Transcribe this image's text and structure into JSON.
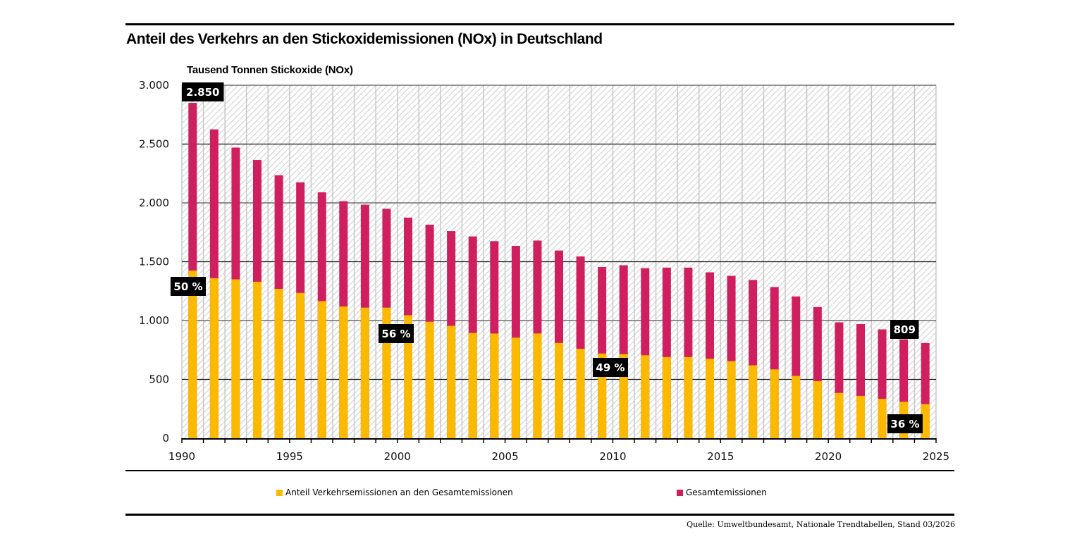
{
  "header": {
    "title": "Anteil des Verkehrs an den Stickoxidemissionen (NOx) in Deutschland"
  },
  "legend": {
    "traffic_label": "Anteil Verkehrsemissionen an den Gesamtemissionen",
    "total_label": "Gesamtemissionen"
  },
  "footer": {
    "source": "Quelle: Umweltbundesamt, Nationale Trendtabellen, Stand 03/2026"
  },
  "chart_data": {
    "type": "bar",
    "stacking": "overlay",
    "title": "Anteil des Verkehrs an den Stickoxidemissionen (NOx) in Deutschland",
    "ylabel": "Tausend Tonnen Stickoxide (NOx)",
    "xlabel": "",
    "ylim": [
      0,
      3000
    ],
    "yticks": [
      0,
      500,
      1000,
      1500,
      2000,
      2500,
      3000
    ],
    "ytick_labels": [
      "0",
      "500",
      "1.000",
      "1.500",
      "2.000",
      "2.500",
      "3.000"
    ],
    "xlim": [
      1990,
      2025
    ],
    "xticks": [
      1990,
      1995,
      2000,
      2005,
      2010,
      2015,
      2020,
      2025
    ],
    "xtick_labels": [
      "1990",
      "1995",
      "2000",
      "2005",
      "2010",
      "2015",
      "2020",
      "2025"
    ],
    "grid": true,
    "legend_position": "bottom",
    "categories": [
      1990,
      1991,
      1992,
      1993,
      1994,
      1995,
      1996,
      1997,
      1998,
      1999,
      2000,
      2001,
      2002,
      2003,
      2004,
      2005,
      2006,
      2007,
      2008,
      2009,
      2010,
      2011,
      2012,
      2013,
      2014,
      2015,
      2016,
      2017,
      2018,
      2019,
      2020,
      2021,
      2022,
      2023,
      2024
    ],
    "series": [
      {
        "name": "Gesamtemissionen",
        "color": "#cf1f5e",
        "values": [
          2850,
          2625,
          2470,
          2365,
          2235,
          2175,
          2090,
          2015,
          1985,
          1950,
          1875,
          1815,
          1760,
          1715,
          1675,
          1635,
          1680,
          1595,
          1545,
          1455,
          1470,
          1445,
          1450,
          1450,
          1410,
          1380,
          1345,
          1285,
          1205,
          1115,
          985,
          970,
          925,
          840,
          809
        ]
      },
      {
        "name": "Anteil Verkehrsemissionen an den Gesamtemissionen",
        "color": "#fbb900",
        "values": [
          1425,
          1360,
          1350,
          1330,
          1270,
          1235,
          1165,
          1120,
          1110,
          1110,
          1045,
          990,
          955,
          895,
          890,
          855,
          890,
          810,
          760,
          720,
          715,
          705,
          690,
          690,
          675,
          655,
          620,
          585,
          530,
          485,
          385,
          360,
          335,
          310,
          290
        ]
      }
    ],
    "annotations": [
      {
        "year": 1990,
        "text": "2.850",
        "anchor": "total"
      },
      {
        "year": 1990,
        "text": "50 %",
        "anchor": "traffic"
      },
      {
        "year": 2000,
        "text": "56 %",
        "anchor": "traffic"
      },
      {
        "year": 2010,
        "text": "49 %",
        "anchor": "traffic"
      },
      {
        "year": 2024,
        "text": "809",
        "anchor": "total"
      },
      {
        "year": 2024,
        "text": "36 %",
        "anchor": "traffic"
      }
    ]
  }
}
